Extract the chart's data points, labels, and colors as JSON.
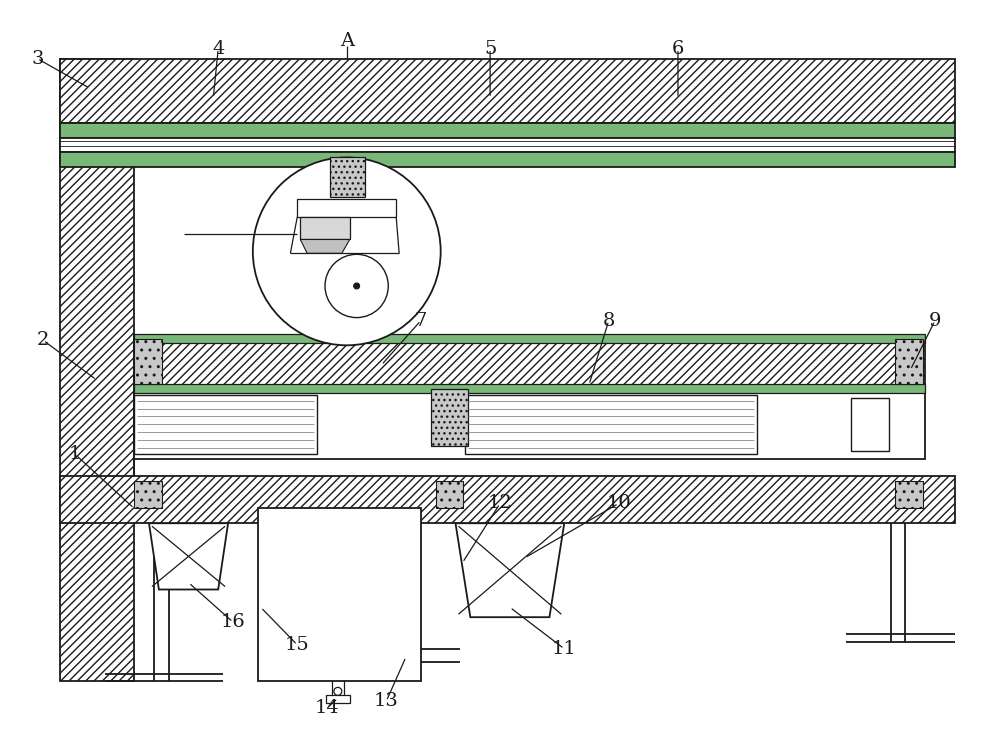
{
  "bg_color": "#ffffff",
  "lc": "#1a1a1a",
  "fig_width": 10.0,
  "fig_height": 7.4,
  "green": "#7ab87a",
  "gray_hatch": "#e0e0e0",
  "gray_fill": "#d0d0d0"
}
